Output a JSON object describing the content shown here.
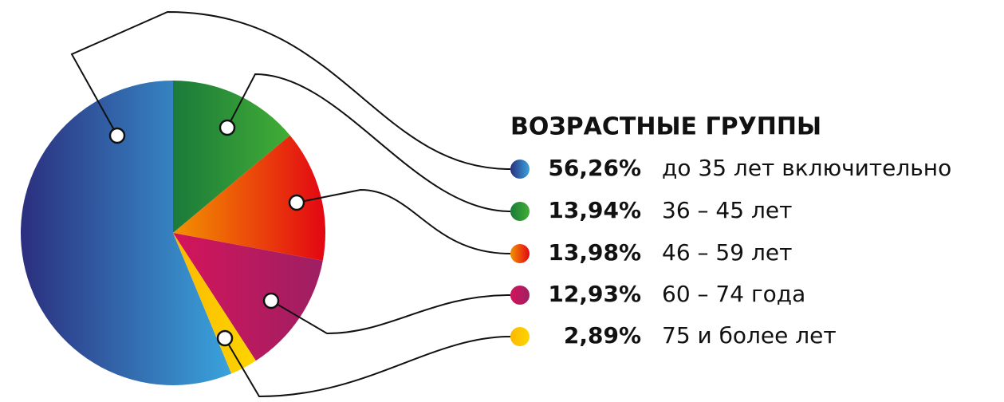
{
  "chart_data": {
    "type": "pie",
    "title": "ВОЗРАСТНЫЕ ГРУППЫ",
    "categories": [
      "до 35 лет включительно",
      "36 – 45 лет",
      "46 – 59 лет",
      "60 – 74 года",
      "75 и более лет"
    ],
    "values": [
      56.26,
      13.94,
      13.98,
      12.93,
      2.89
    ],
    "value_labels": [
      "56,26%",
      "13,94%",
      "13,98%",
      "12,93%",
      "2,89%"
    ],
    "colors": [
      [
        "#2b2f7e",
        "#3aa3dc"
      ],
      [
        "#1b7a3a",
        "#41ad35"
      ],
      [
        "#f39200",
        "#e30613"
      ],
      [
        "#d4145a",
        "#9e1f63"
      ],
      [
        "#fbb900",
        "#fdd500"
      ]
    ]
  }
}
